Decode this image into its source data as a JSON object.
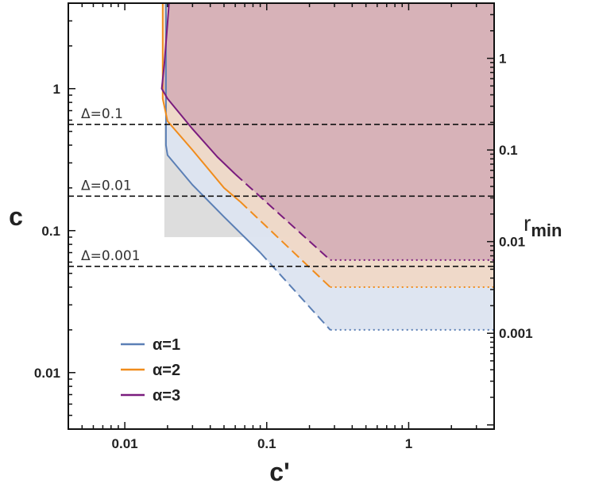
{
  "chart_data": {
    "type": "area",
    "xlabel": "c'",
    "ylabel": "c",
    "ylabel_right": "r",
    "ylabel_right_sub": "min",
    "x_scale": "log",
    "y_scale": "log",
    "xlim": [
      0.004,
      4
    ],
    "ylim": [
      0.004,
      4
    ],
    "right_axis": {
      "scale": "log",
      "lim": [
        9e-05,
        4
      ],
      "ticks": [
        1,
        0.1,
        0.01,
        0.001
      ],
      "tick_labels": [
        "1",
        "0.1",
        "0.01",
        "0.001"
      ]
    },
    "x_ticks": [
      0.01,
      0.1,
      1
    ],
    "x_tick_labels": [
      "0.01",
      "0.1",
      "1"
    ],
    "y_ticks": [
      0.01,
      0.1,
      1
    ],
    "y_tick_labels": [
      "0.01",
      "0.1",
      "1"
    ],
    "grid": false,
    "legend_position": "bottom-left",
    "annotations": [
      {
        "text": "Δ=0.1",
        "y": 0.56
      },
      {
        "text": "Δ=0.01",
        "y": 0.175
      },
      {
        "text": "Δ=0.001",
        "y": 0.056
      }
    ],
    "gray_region": {
      "x": [
        0.019,
        0.2
      ],
      "y": [
        0.09,
        0.56
      ]
    },
    "series": [
      {
        "name": "α=1",
        "color": "#5b7fb5",
        "fill": "#dce4f0",
        "solid": [
          [
            0.0195,
            4
          ],
          [
            0.0195,
            0.4
          ],
          [
            0.02,
            0.34
          ],
          [
            0.03,
            0.21
          ],
          [
            0.05,
            0.125
          ],
          [
            0.09,
            0.07
          ]
        ],
        "dashed": [
          [
            0.09,
            0.07
          ],
          [
            0.28,
            0.02
          ]
        ],
        "dotted": [
          [
            0.28,
            0.02
          ],
          [
            4,
            0.02
          ]
        ]
      },
      {
        "name": "α=2",
        "color": "#f08c1c",
        "fill": "#f2d6bf",
        "solid": [
          [
            0.0185,
            4
          ],
          [
            0.0185,
            0.85
          ],
          [
            0.02,
            0.59
          ],
          [
            0.03,
            0.37
          ],
          [
            0.05,
            0.2
          ],
          [
            0.065,
            0.16
          ]
        ],
        "dashed": [
          [
            0.065,
            0.16
          ],
          [
            0.28,
            0.04
          ]
        ],
        "dotted": [
          [
            0.28,
            0.04
          ],
          [
            4,
            0.04
          ]
        ]
      },
      {
        "name": "α=3",
        "color": "#7a1c7e",
        "fill": "#d1a8b4",
        "solid": [
          [
            0.0205,
            4
          ],
          [
            0.019,
            1.5
          ],
          [
            0.0182,
            1.0
          ],
          [
            0.02,
            0.85
          ],
          [
            0.03,
            0.52
          ],
          [
            0.045,
            0.33
          ],
          [
            0.06,
            0.25
          ]
        ],
        "dashed": [
          [
            0.06,
            0.25
          ],
          [
            0.28,
            0.062
          ]
        ],
        "dotted": [
          [
            0.28,
            0.062
          ],
          [
            4,
            0.062
          ]
        ]
      }
    ]
  }
}
